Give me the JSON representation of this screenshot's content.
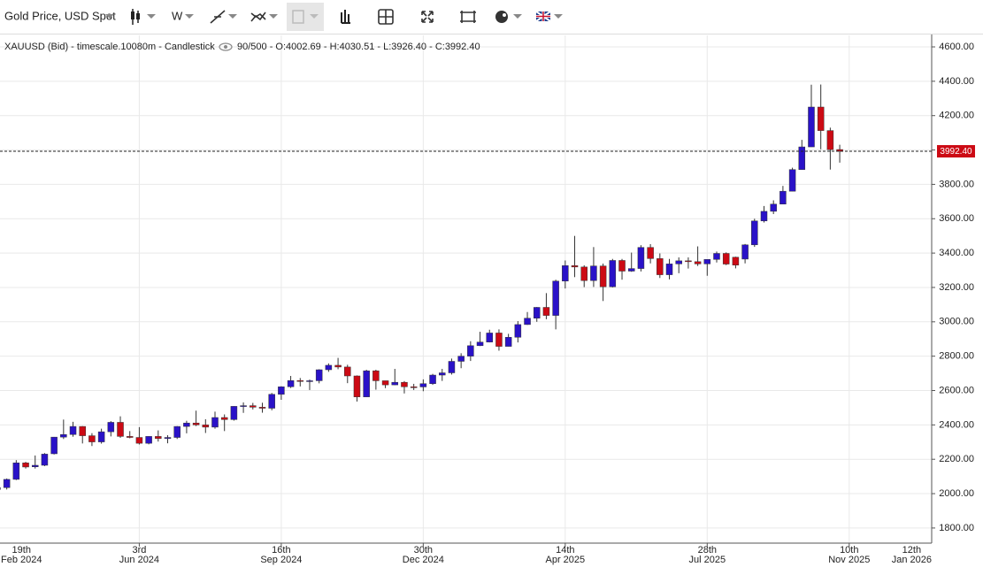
{
  "toolbar": {
    "instrument": "Gold Price, USD Spot",
    "interval": "W"
  },
  "chart_data": {
    "type": "candlestick",
    "title": "XAUUSD (Bid) - timescale.10080m - Candlestick",
    "summary": "90/500 - O:4002.69 - H:4030.51 - L:3926.40 - C:3992.40",
    "x": [
      "2024-02-19",
      "2024-02-26",
      "2024-03-04",
      "2024-03-11",
      "2024-03-18",
      "2024-03-25",
      "2024-04-01",
      "2024-04-08",
      "2024-04-15",
      "2024-04-22",
      "2024-04-29",
      "2024-05-06",
      "2024-05-13",
      "2024-05-20",
      "2024-05-27",
      "2024-06-03",
      "2024-06-10",
      "2024-06-17",
      "2024-06-24",
      "2024-07-01",
      "2024-07-08",
      "2024-07-15",
      "2024-07-22",
      "2024-07-29",
      "2024-08-05",
      "2024-08-12",
      "2024-08-19",
      "2024-08-26",
      "2024-09-02",
      "2024-09-09",
      "2024-09-16",
      "2024-09-23",
      "2024-09-30",
      "2024-10-07",
      "2024-10-14",
      "2024-10-21",
      "2024-10-28",
      "2024-11-04",
      "2024-11-11",
      "2024-11-18",
      "2024-11-25",
      "2024-12-02",
      "2024-12-09",
      "2024-12-16",
      "2024-12-23",
      "2024-12-30",
      "2025-01-06",
      "2025-01-13",
      "2025-01-20",
      "2025-01-27",
      "2025-02-03",
      "2025-02-10",
      "2025-02-17",
      "2025-02-24",
      "2025-03-03",
      "2025-03-10",
      "2025-03-17",
      "2025-03-24",
      "2025-03-31",
      "2025-04-07",
      "2025-04-14",
      "2025-04-21",
      "2025-04-28",
      "2025-05-05",
      "2025-05-12",
      "2025-05-19",
      "2025-05-26",
      "2025-06-02",
      "2025-06-09",
      "2025-06-16",
      "2025-06-23",
      "2025-06-30",
      "2025-07-07",
      "2025-07-14",
      "2025-07-21",
      "2025-07-28",
      "2025-08-04",
      "2025-08-11",
      "2025-08-18",
      "2025-08-25",
      "2025-09-01",
      "2025-09-08",
      "2025-09-15",
      "2025-09-22",
      "2025-09-29",
      "2025-10-06",
      "2025-10-13",
      "2025-10-20",
      "2025-10-27",
      "2025-11-03"
    ],
    "open": [
      2024,
      2035,
      2083,
      2179,
      2156,
      2165,
      2232,
      2329,
      2344,
      2391,
      2337,
      2301,
      2360,
      2415,
      2333,
      2327,
      2293,
      2333,
      2321,
      2327,
      2391,
      2411,
      2400,
      2387,
      2443,
      2431,
      2508,
      2512,
      2503,
      2497,
      2578,
      2622,
      2658,
      2653,
      2657,
      2721,
      2747,
      2737,
      2685,
      2563,
      2715,
      2657,
      2633,
      2648,
      2622,
      2621,
      2640,
      2690,
      2703,
      2770,
      2800,
      2861,
      2882,
      2935,
      2857,
      2910,
      2984,
      3021,
      3084,
      3037,
      3237,
      3327,
      3319,
      3240,
      3325,
      3204,
      3357,
      3295,
      3310,
      3433,
      3368,
      3274,
      3337,
      3355,
      3350,
      3337,
      3363,
      3398,
      3376,
      3365,
      3448,
      3587,
      3643,
      3685,
      3760,
      3886,
      4018,
      4250,
      4113,
      4002.69
    ],
    "high": [
      2041,
      2088,
      2195,
      2185,
      2222,
      2236,
      2330,
      2431,
      2418,
      2393,
      2352,
      2378,
      2422,
      2450,
      2364,
      2387,
      2334,
      2368,
      2340,
      2393,
      2424,
      2483,
      2433,
      2477,
      2461,
      2509,
      2531,
      2528,
      2529,
      2586,
      2625,
      2685,
      2673,
      2664,
      2724,
      2758,
      2790,
      2750,
      2688,
      2721,
      2721,
      2657,
      2726,
      2655,
      2639,
      2665,
      2697,
      2726,
      2786,
      2817,
      2887,
      2942,
      2954,
      2956,
      2930,
      3004,
      3057,
      3086,
      3167,
      3245,
      3357,
      3500,
      3329,
      3435,
      3339,
      3366,
      3366,
      3403,
      3446,
      3452,
      3398,
      3366,
      3375,
      3375,
      3439,
      3363,
      3409,
      3404,
      3379,
      3453,
      3600,
      3674,
      3707,
      3791,
      3897,
      4059,
      4380,
      4381,
      4130,
      4030.51
    ],
    "low": [
      2010,
      2024,
      2079,
      2146,
      2146,
      2160,
      2228,
      2318,
      2331,
      2292,
      2277,
      2291,
      2333,
      2325,
      2322,
      2286,
      2287,
      2303,
      2293,
      2318,
      2351,
      2393,
      2353,
      2378,
      2364,
      2425,
      2470,
      2490,
      2471,
      2485,
      2546,
      2615,
      2624,
      2603,
      2642,
      2709,
      2724,
      2643,
      2536,
      2563,
      2605,
      2614,
      2631,
      2583,
      2603,
      2596,
      2633,
      2656,
      2693,
      2730,
      2772,
      2859,
      2880,
      2832,
      2857,
      2880,
      2982,
      3000,
      3015,
      2956,
      3194,
      3260,
      3202,
      3203,
      3121,
      3200,
      3245,
      3291,
      3293,
      3340,
      3255,
      3247,
      3283,
      3310,
      3325,
      3268,
      3345,
      3330,
      3311,
      3340,
      3436,
      3578,
      3627,
      3684,
      3760,
      3886,
      4018,
      4004,
      3886,
      3926.4
    ],
    "close": [
      2035,
      2083,
      2179,
      2155,
      2165,
      2230,
      2329,
      2344,
      2391,
      2337,
      2301,
      2360,
      2415,
      2333,
      2327,
      2293,
      2333,
      2321,
      2327,
      2391,
      2411,
      2400,
      2387,
      2443,
      2431,
      2508,
      2512,
      2503,
      2497,
      2578,
      2622,
      2658,
      2653,
      2657,
      2721,
      2747,
      2737,
      2685,
      2563,
      2715,
      2657,
      2633,
      2648,
      2622,
      2621,
      2640,
      2690,
      2703,
      2770,
      2800,
      2861,
      2882,
      2935,
      2857,
      2910,
      2984,
      3021,
      3084,
      3037,
      3237,
      3327,
      3319,
      3240,
      3325,
      3204,
      3357,
      3295,
      3310,
      3433,
      3368,
      3274,
      3337,
      3355,
      3350,
      3337,
      3363,
      3398,
      3336,
      3330,
      3448,
      3587,
      3643,
      3685,
      3760,
      3886,
      4018,
      4250,
      4113,
      4002,
      3992.4
    ],
    "up_color": "#2a12c8",
    "down_color": "#cc0a14",
    "last_price": {
      "value": 3992.4,
      "label": "3992.40"
    },
    "ylim": [
      1712,
      4667
    ],
    "yticks": [
      {
        "value": 1800,
        "label": "1800.00"
      },
      {
        "value": 2000,
        "label": "2000.00"
      },
      {
        "value": 2200,
        "label": "2200.00"
      },
      {
        "value": 2400,
        "label": "2400.00"
      },
      {
        "value": 2600,
        "label": "2600.00"
      },
      {
        "value": 2800,
        "label": "2800.00"
      },
      {
        "value": 3000,
        "label": "3000.00"
      },
      {
        "value": 3200,
        "label": "3200.00"
      },
      {
        "value": 3400,
        "label": "3400.00"
      },
      {
        "value": 3600,
        "label": "3600.00"
      },
      {
        "value": 3800,
        "label": "3800.00"
      },
      {
        "value": 4000,
        "label": "4000.00"
      },
      {
        "value": 4200,
        "label": "4200.00"
      },
      {
        "value": 4400,
        "label": "4400.00"
      },
      {
        "value": 4600,
        "label": "4600.00"
      }
    ],
    "xlim": [
      "2024-02-21",
      "2026-01-10"
    ],
    "xticks": [
      {
        "value": "2024-02-19",
        "label": [
          "19th",
          "Feb 2024"
        ]
      },
      {
        "value": "2024-06-03",
        "label": [
          "3rd",
          "Jun 2024"
        ]
      },
      {
        "value": "2024-09-16",
        "label": [
          "16th",
          "Sep 2024"
        ]
      },
      {
        "value": "2024-12-30",
        "label": [
          "30th",
          "Dec 2024"
        ]
      },
      {
        "value": "2025-04-14",
        "label": [
          "14th",
          "Apr 2025"
        ]
      },
      {
        "value": "2025-07-28",
        "label": [
          "28th",
          "Jul 2025"
        ]
      },
      {
        "value": "2025-11-10",
        "label": [
          "10th",
          "Nov 2025"
        ]
      },
      {
        "value": "2026-01-12",
        "label": [
          "12th",
          "Jan 2026"
        ]
      }
    ],
    "grid": true
  }
}
